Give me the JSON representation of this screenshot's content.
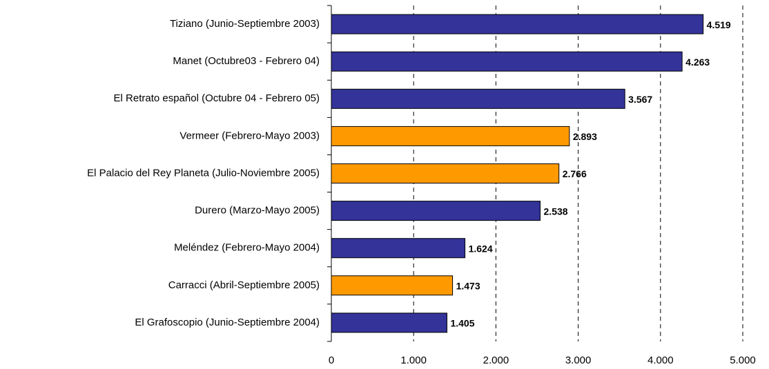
{
  "chart_data": {
    "type": "bar",
    "orientation": "horizontal",
    "categories": [
      "Tiziano (Junio-Septiembre 2003)",
      "Manet (Octubre03 - Febrero 04)",
      "El Retrato español (Octubre 04 - Febrero 05)",
      "Vermeer (Febrero-Mayo 2003)",
      "El Palacio del Rey Planeta (Julio-Noviembre 2005)",
      "Durero  (Marzo-Mayo 2005)",
      "Meléndez (Febrero-Mayo 2004)",
      "Carracci (Abril-Septiembre 2005)",
      "El Grafoscopio (Junio-Septiembre 2004)"
    ],
    "values": [
      4519,
      4263,
      3567,
      2893,
      2766,
      2538,
      1624,
      1473,
      1405
    ],
    "value_labels": [
      "4.519",
      "4.263",
      "3.567",
      "2.893",
      "2.766",
      "2.538",
      "1.624",
      "1.473",
      "1.405"
    ],
    "colors": [
      "#333399",
      "#333399",
      "#333399",
      "#ff9900",
      "#ff9900",
      "#333399",
      "#333399",
      "#ff9900",
      "#333399"
    ],
    "xlim": [
      0,
      5000
    ],
    "xticks": [
      0,
      {
        "value": 1000,
        "label": "1.000"
      },
      {
        "value": 2000,
        "label": "2.000"
      },
      {
        "value": 3000,
        "label": "3.000"
      },
      {
        "value": 4000,
        "label": "4.000"
      },
      {
        "value": 5000,
        "label": "5.000"
      }
    ],
    "grid": true
  }
}
